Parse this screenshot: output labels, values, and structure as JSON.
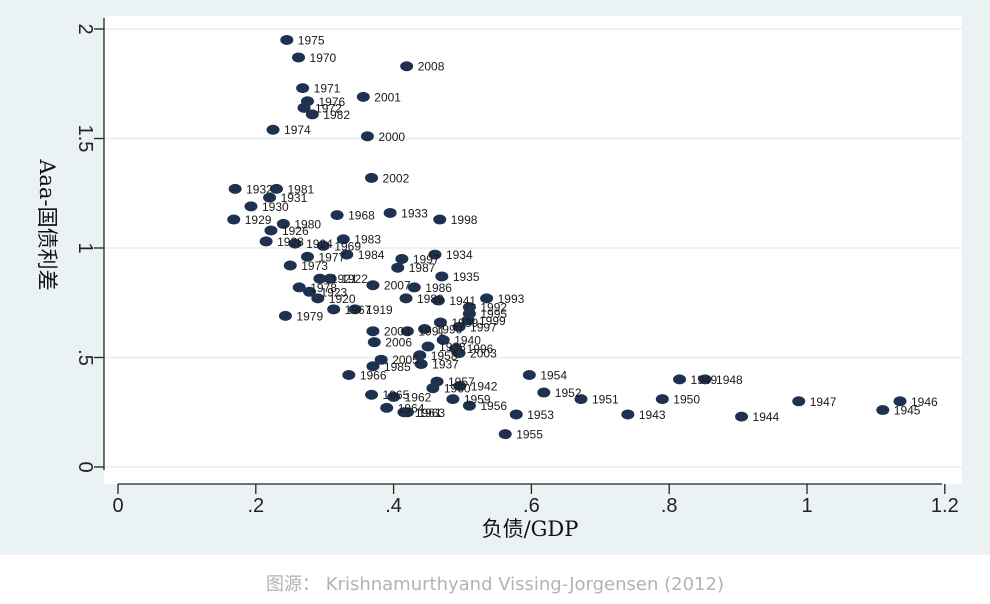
{
  "caption": "图源： Krishnamurthyand Vissing-Jorgensen (2012)",
  "chart_data": {
    "type": "scatter",
    "xlabel": "负债/GDP",
    "ylabel": "Aaa-国债利差",
    "xlim": [
      0,
      1.2
    ],
    "ylim": [
      0,
      2
    ],
    "x_ticks": [
      {
        "value": 0,
        "label": "0"
      },
      {
        "value": 0.2,
        "label": ".2"
      },
      {
        "value": 0.4,
        "label": ".4"
      },
      {
        "value": 0.6,
        "label": ".6"
      },
      {
        "value": 0.8,
        "label": ".8"
      },
      {
        "value": 1.0,
        "label": "1"
      },
      {
        "value": 1.2,
        "label": "1.2"
      }
    ],
    "y_ticks": [
      {
        "value": 0,
        "label": "0"
      },
      {
        "value": 0.5,
        "label": ".5"
      },
      {
        "value": 1.0,
        "label": "1"
      },
      {
        "value": 1.5,
        "label": "1.5"
      },
      {
        "value": 2.0,
        "label": "2"
      }
    ],
    "grid": "horizontal",
    "marker_color": "#1e3250",
    "points": [
      {
        "label": "1975",
        "x": 0.245,
        "y": 1.95
      },
      {
        "label": "1970",
        "x": 0.262,
        "y": 1.87
      },
      {
        "label": "2008",
        "x": 0.419,
        "y": 1.83
      },
      {
        "label": "1971",
        "x": 0.268,
        "y": 1.73
      },
      {
        "label": "2001",
        "x": 0.356,
        "y": 1.69
      },
      {
        "label": "1976",
        "x": 0.275,
        "y": 1.67
      },
      {
        "label": "1972",
        "x": 0.27,
        "y": 1.64
      },
      {
        "label": "1982",
        "x": 0.282,
        "y": 1.61
      },
      {
        "label": "1974",
        "x": 0.225,
        "y": 1.54
      },
      {
        "label": "2000",
        "x": 0.362,
        "y": 1.51
      },
      {
        "label": "2002",
        "x": 0.368,
        "y": 1.32
      },
      {
        "label": "1932",
        "x": 0.17,
        "y": 1.27
      },
      {
        "label": "1981",
        "x": 0.23,
        "y": 1.27
      },
      {
        "label": "1931",
        "x": 0.22,
        "y": 1.23
      },
      {
        "label": "1930",
        "x": 0.193,
        "y": 1.19
      },
      {
        "label": "1968",
        "x": 0.318,
        "y": 1.15
      },
      {
        "label": "1933",
        "x": 0.395,
        "y": 1.16
      },
      {
        "label": "1998",
        "x": 0.467,
        "y": 1.13
      },
      {
        "label": "1929",
        "x": 0.168,
        "y": 1.13
      },
      {
        "label": "1980",
        "x": 0.24,
        "y": 1.11
      },
      {
        "label": "1926",
        "x": 0.222,
        "y": 1.08
      },
      {
        "label": "1983",
        "x": 0.327,
        "y": 1.04
      },
      {
        "label": "1928",
        "x": 0.215,
        "y": 1.03
      },
      {
        "label": "1924",
        "x": 0.257,
        "y": 1.02
      },
      {
        "label": "1969",
        "x": 0.298,
        "y": 1.01
      },
      {
        "label": "1984",
        "x": 0.332,
        "y": 0.97
      },
      {
        "label": "1977",
        "x": 0.275,
        "y": 0.96
      },
      {
        "label": "1997",
        "x": 0.412,
        "y": 0.95
      },
      {
        "label": "1934",
        "x": 0.46,
        "y": 0.97
      },
      {
        "label": "1973",
        "x": 0.25,
        "y": 0.92
      },
      {
        "label": "1987",
        "x": 0.406,
        "y": 0.91
      },
      {
        "label": "1935",
        "x": 0.47,
        "y": 0.87
      },
      {
        "label": "1921",
        "x": 0.293,
        "y": 0.86
      },
      {
        "label": "1922",
        "x": 0.308,
        "y": 0.86
      },
      {
        "label": "2007",
        "x": 0.37,
        "y": 0.83
      },
      {
        "label": "1986",
        "x": 0.43,
        "y": 0.82
      },
      {
        "label": "1978",
        "x": 0.263,
        "y": 0.82
      },
      {
        "label": "1923",
        "x": 0.278,
        "y": 0.8
      },
      {
        "label": "1920",
        "x": 0.29,
        "y": 0.77
      },
      {
        "label": "1989",
        "x": 0.418,
        "y": 0.77
      },
      {
        "label": "1941",
        "x": 0.465,
        "y": 0.76
      },
      {
        "label": "1993",
        "x": 0.535,
        "y": 0.77
      },
      {
        "label": "1992",
        "x": 0.51,
        "y": 0.73
      },
      {
        "label": "1967",
        "x": 0.313,
        "y": 0.72
      },
      {
        "label": "1919",
        "x": 0.344,
        "y": 0.72
      },
      {
        "label": "1995",
        "x": 0.51,
        "y": 0.7
      },
      {
        "label": "1979",
        "x": 0.243,
        "y": 0.69
      },
      {
        "label": "1999",
        "x": 0.508,
        "y": 0.67
      },
      {
        "label": "1939",
        "x": 0.468,
        "y": 0.66
      },
      {
        "label": "1997",
        "x": 0.495,
        "y": 0.64
      },
      {
        "label": "1990",
        "x": 0.445,
        "y": 0.63
      },
      {
        "label": "2004",
        "x": 0.37,
        "y": 0.62
      },
      {
        "label": "1991",
        "x": 0.42,
        "y": 0.62
      },
      {
        "label": "1940",
        "x": 0.472,
        "y": 0.58
      },
      {
        "label": "2006",
        "x": 0.372,
        "y": 0.57
      },
      {
        "label": "1938",
        "x": 0.45,
        "y": 0.55
      },
      {
        "label": "1996",
        "x": 0.49,
        "y": 0.54
      },
      {
        "label": "2003",
        "x": 0.495,
        "y": 0.52
      },
      {
        "label": "1958",
        "x": 0.438,
        "y": 0.51
      },
      {
        "label": "2005",
        "x": 0.382,
        "y": 0.49
      },
      {
        "label": "1937",
        "x": 0.44,
        "y": 0.47
      },
      {
        "label": "1985",
        "x": 0.37,
        "y": 0.46
      },
      {
        "label": "1954",
        "x": 0.597,
        "y": 0.42
      },
      {
        "label": "1966",
        "x": 0.335,
        "y": 0.42
      },
      {
        "label": "1949",
        "x": 0.815,
        "y": 0.4
      },
      {
        "label": "1948",
        "x": 0.852,
        "y": 0.4
      },
      {
        "label": "1957",
        "x": 0.463,
        "y": 0.39
      },
      {
        "label": "1942",
        "x": 0.496,
        "y": 0.37
      },
      {
        "label": "1960",
        "x": 0.457,
        "y": 0.36
      },
      {
        "label": "1952",
        "x": 0.618,
        "y": 0.34
      },
      {
        "label": "1965",
        "x": 0.368,
        "y": 0.33
      },
      {
        "label": "1962",
        "x": 0.4,
        "y": 0.32
      },
      {
        "label": "1951",
        "x": 0.672,
        "y": 0.31
      },
      {
        "label": "1950",
        "x": 0.79,
        "y": 0.31
      },
      {
        "label": "1959",
        "x": 0.486,
        "y": 0.31
      },
      {
        "label": "1947",
        "x": 0.988,
        "y": 0.3
      },
      {
        "label": "1946",
        "x": 1.135,
        "y": 0.3
      },
      {
        "label": "1956",
        "x": 0.51,
        "y": 0.28
      },
      {
        "label": "1964",
        "x": 0.39,
        "y": 0.27
      },
      {
        "label": "1945",
        "x": 1.11,
        "y": 0.26
      },
      {
        "label": "1961",
        "x": 0.415,
        "y": 0.25
      },
      {
        "label": "1963",
        "x": 0.42,
        "y": 0.25
      },
      {
        "label": "1943",
        "x": 0.74,
        "y": 0.24
      },
      {
        "label": "1953",
        "x": 0.578,
        "y": 0.24
      },
      {
        "label": "1944",
        "x": 0.905,
        "y": 0.23
      },
      {
        "label": "1955",
        "x": 0.562,
        "y": 0.15
      }
    ]
  }
}
